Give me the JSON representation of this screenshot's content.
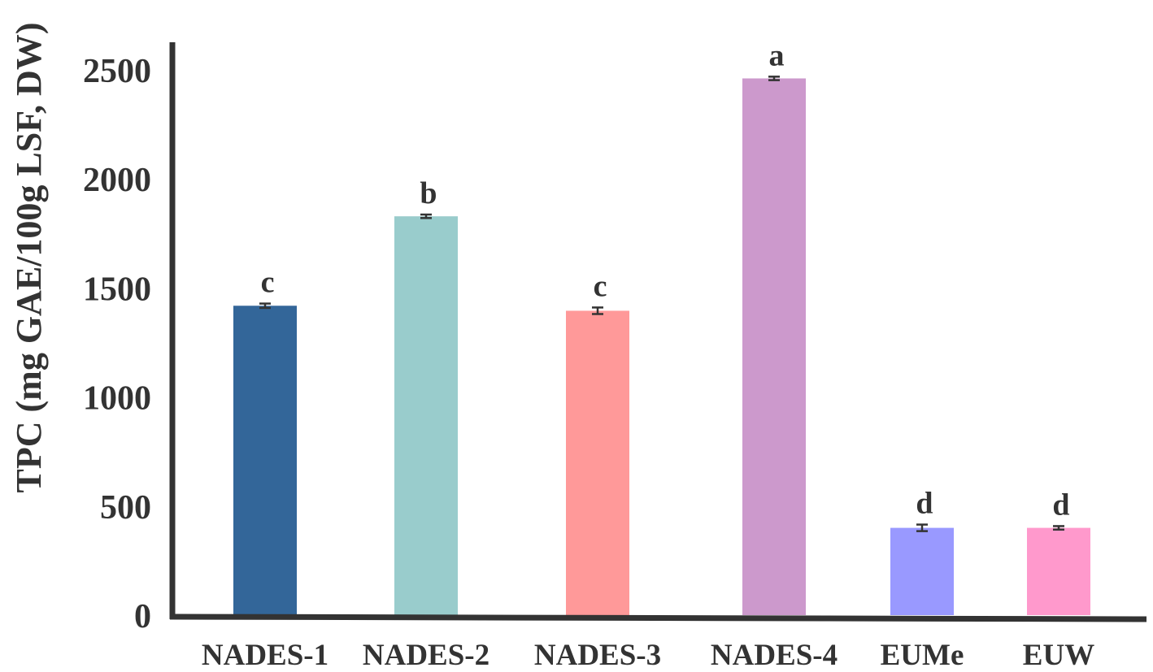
{
  "chart_data": {
    "type": "bar",
    "title": "",
    "xlabel": "",
    "ylabel": "TPC (mg GAE/100g LSF, DW)",
    "ylim": [
      0,
      2600
    ],
    "yticks": [
      0,
      500,
      1000,
      1500,
      2000,
      2500
    ],
    "grid": false,
    "categories": [
      "NADES-1",
      "NADES-2",
      "NADES-3",
      "NADES-4",
      "EUMe",
      "EUW"
    ],
    "values": [
      1418,
      1828,
      1395,
      2460,
      400,
      400
    ],
    "errors": [
      10,
      8,
      15,
      8,
      15,
      8
    ],
    "significance_letters": [
      "c",
      "b",
      "c",
      "a",
      "d",
      "d"
    ],
    "colors": [
      "#336699",
      "#99CCCC",
      "#FF9999",
      "#CC99CC",
      "#9999FF",
      "#FF99CC"
    ]
  }
}
